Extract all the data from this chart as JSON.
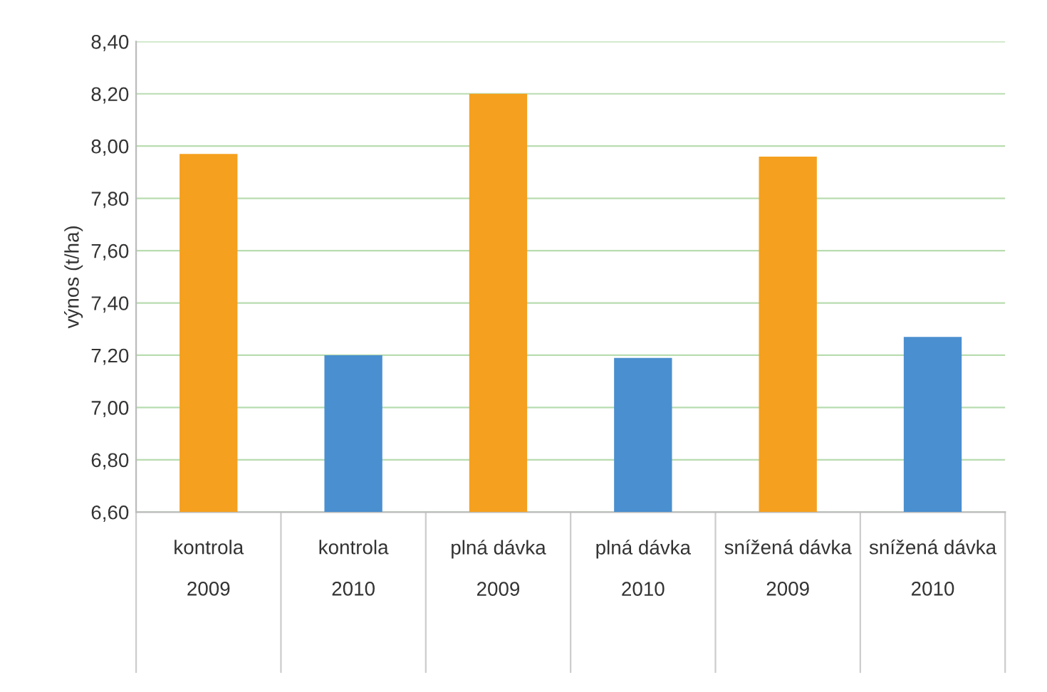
{
  "chart_data": {
    "type": "bar",
    "ylabel": "výnos (t/ha)",
    "categories": [
      "kontrola\n2009",
      "kontrola\n2010",
      "plná dávka\n2009",
      "plná dávka\n2010",
      "snížená dávka\n2009",
      "snížená dávka\n2010"
    ],
    "values": [
      7.97,
      7.2,
      8.2,
      7.19,
      7.96,
      7.27
    ],
    "colors": [
      "#f5a01e",
      "#4a8fcf",
      "#f5a01e",
      "#4a8fcf",
      "#f5a01e",
      "#4a8fcf"
    ],
    "ylim": [
      6.6,
      8.4
    ],
    "yticks": [
      {
        "value": 6.6,
        "label": "6,60"
      },
      {
        "value": 6.8,
        "label": "6,80"
      },
      {
        "value": 7.0,
        "label": "7,00"
      },
      {
        "value": 7.2,
        "label": "7,20"
      },
      {
        "value": 7.4,
        "label": "7,40"
      },
      {
        "value": 7.6,
        "label": "7,60"
      },
      {
        "value": 7.8,
        "label": "7,80"
      },
      {
        "value": 8.0,
        "label": "8,00"
      },
      {
        "value": 8.2,
        "label": "8,20"
      },
      {
        "value": 8.4,
        "label": "8,40"
      }
    ],
    "grid": "y",
    "legend": false
  }
}
